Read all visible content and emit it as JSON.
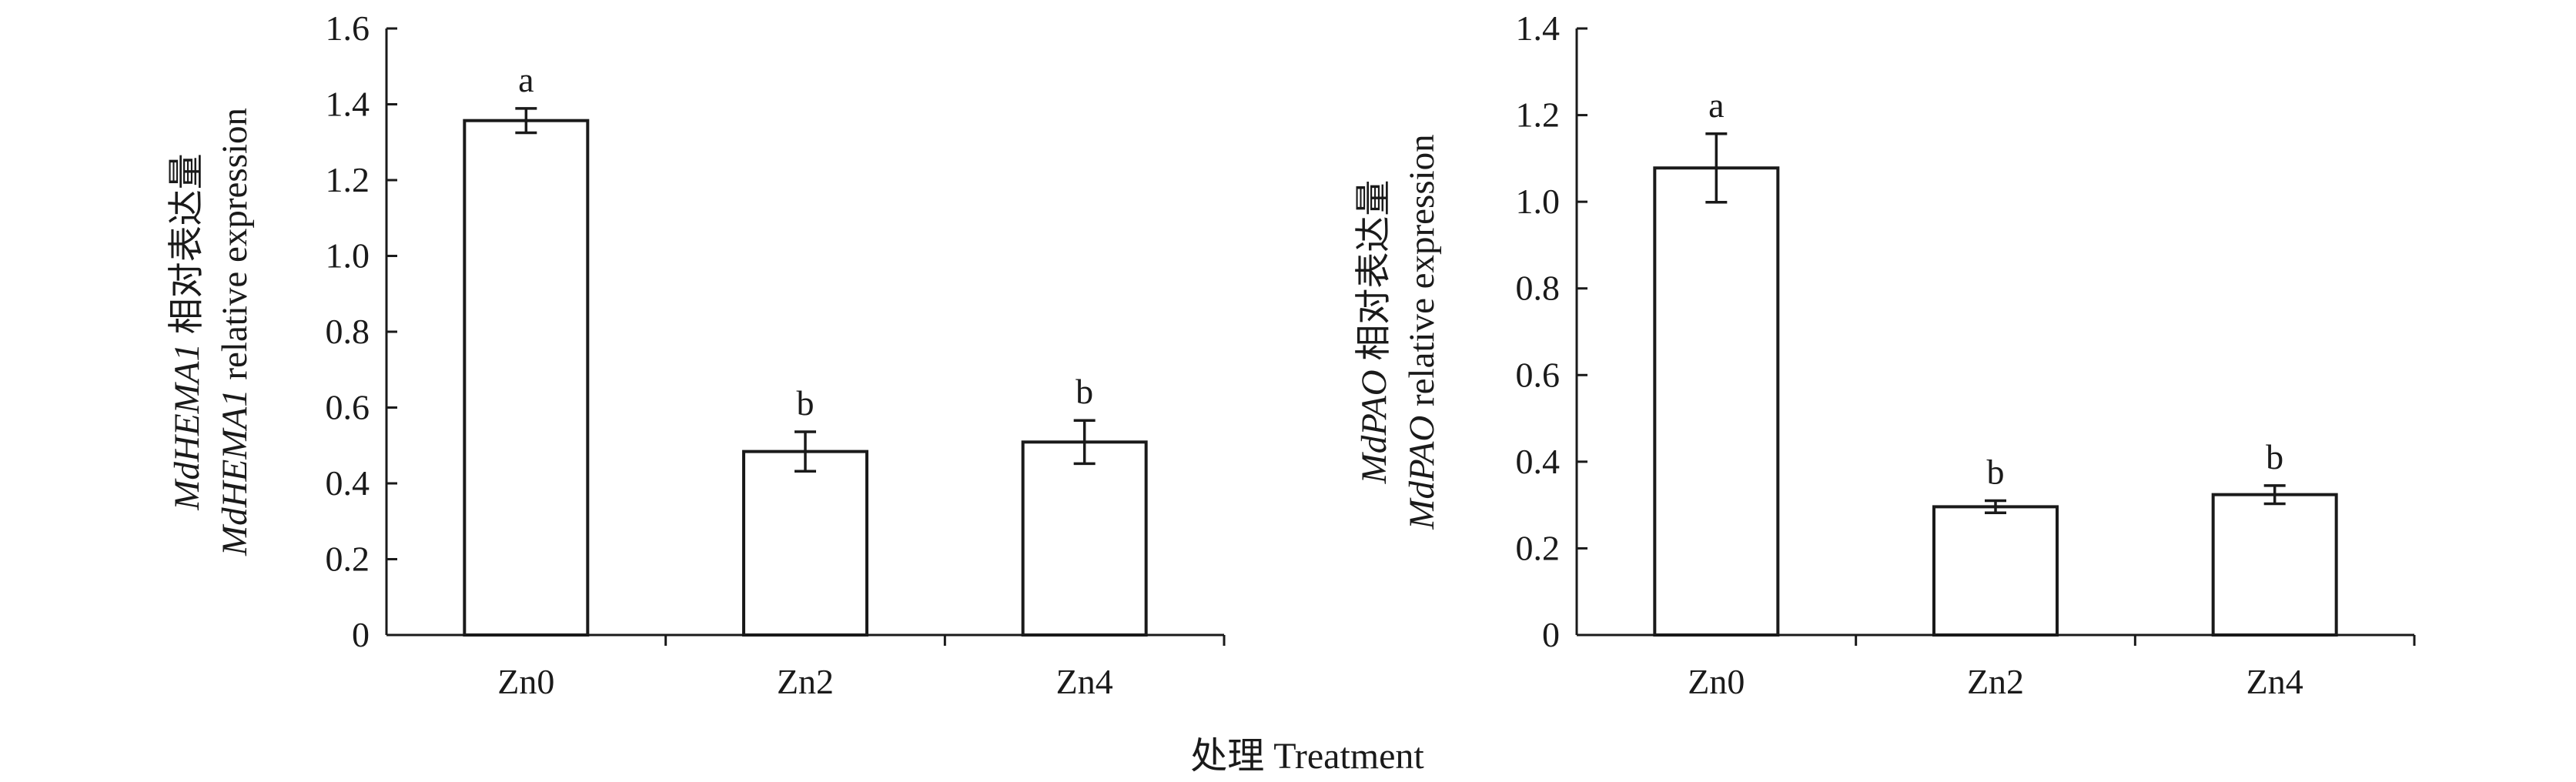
{
  "xlabel": "处理 Treatment",
  "chart_data": [
    {
      "type": "bar",
      "categories": [
        "Zn0",
        "Zn2",
        "Zn4"
      ],
      "values": [
        1.357,
        0.484,
        0.509
      ],
      "errors": [
        0.032,
        0.052,
        0.057
      ],
      "significance": [
        "a",
        "b",
        "b"
      ],
      "ylim": [
        0,
        1.6
      ],
      "yticks": [
        "0",
        "0.2",
        "0.4",
        "0.6",
        "0.8",
        "1.0",
        "1.2",
        "1.4",
        "1.6"
      ],
      "ylabel_line1": {
        "gene": "MdHEMA1",
        "text": " 相对表达量"
      },
      "ylabel_line2": {
        "gene": "MdHEMA1",
        "text": " relative expression"
      },
      "bar_fill": "#ffffff",
      "bar_edge": "#1a1a1a"
    },
    {
      "type": "bar",
      "categories": [
        "Zn0",
        "Zn2",
        "Zn4"
      ],
      "values": [
        1.078,
        0.296,
        0.324
      ],
      "errors": [
        0.079,
        0.014,
        0.021
      ],
      "significance": [
        "a",
        "b",
        "b"
      ],
      "ylim": [
        0,
        1.4
      ],
      "yticks": [
        "0",
        "0.2",
        "0.4",
        "0.6",
        "0.8",
        "1.0",
        "1.2",
        "1.4"
      ],
      "ylabel_line1": {
        "gene": "MdPAO",
        "text": " 相对表达量"
      },
      "ylabel_line2": {
        "gene": "MdPAO",
        "text": " relative expression"
      },
      "bar_fill": "#ffffff",
      "bar_edge": "#1a1a1a"
    }
  ]
}
